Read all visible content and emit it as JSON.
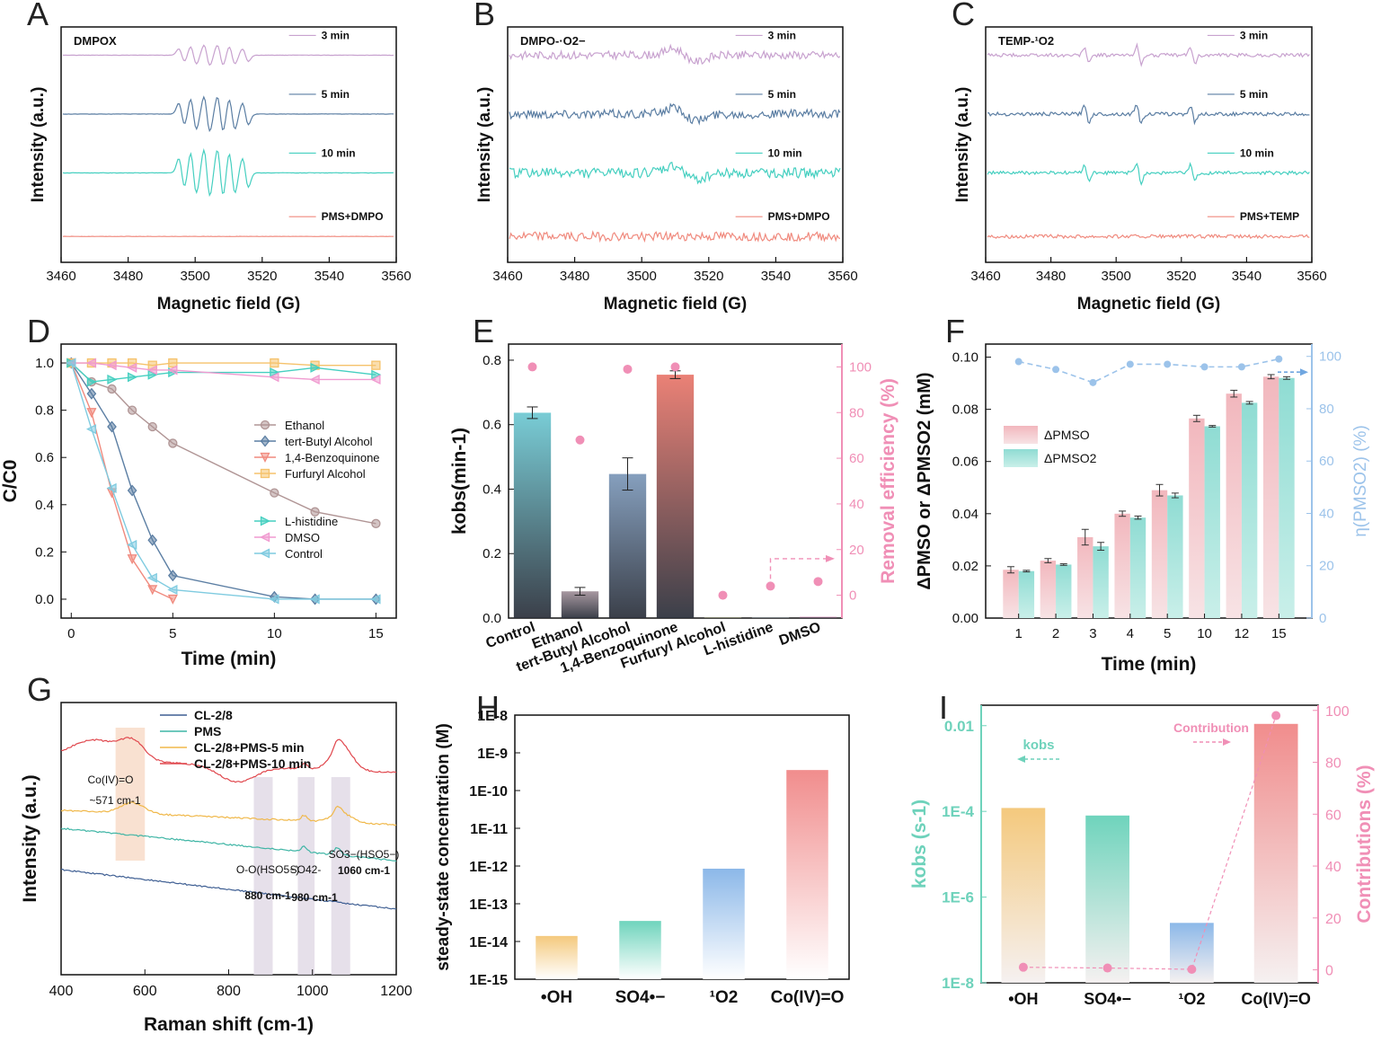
{
  "figure": {
    "panels": {
      "A": {
        "letter": "A",
        "title": "DMPOX"
      },
      "B": {
        "letter": "B",
        "title": "DMPO-·O2−"
      },
      "C": {
        "letter": "C",
        "title": "TEMP-¹O2"
      },
      "D": {
        "letter": "D"
      },
      "E": {
        "letter": "E"
      },
      "F": {
        "letter": "F"
      },
      "G": {
        "letter": "G"
      },
      "H": {
        "letter": "H"
      },
      "I": {
        "letter": "I"
      }
    },
    "colors": {
      "purple": "#c8a2cf",
      "blue": "#5b7ea3",
      "teal": "#45cfc0",
      "salmon": "#f08a7e",
      "pink": "#f08fb6",
      "light_blue": "#9cc3ea",
      "brown": "#b09595"
    }
  },
  "chart_data": [
    {
      "panel": "A",
      "type": "line",
      "title": "DMPOX",
      "xlabel": "Magnetic field (G)",
      "ylabel": "Intensity (a.u.)",
      "xlim": [
        3460,
        3560
      ],
      "xticks": [
        "3460",
        "3480",
        "3500",
        "3520",
        "3540",
        "3560"
      ],
      "series": [
        {
          "name": "3 min",
          "color": "#c8a2cf"
        },
        {
          "name": "5 min",
          "color": "#5b7ea3"
        },
        {
          "name": "10 min",
          "color": "#45cfc0"
        },
        {
          "name": "PMS+DMPO",
          "color": "#f08a7e"
        }
      ]
    },
    {
      "panel": "B",
      "type": "line",
      "title": "DMPO-·O2−",
      "xlabel": "Magnetic field (G)",
      "ylabel": "Intensity (a.u.)",
      "xlim": [
        3460,
        3560
      ],
      "xticks": [
        "3460",
        "3480",
        "3500",
        "3520",
        "3540",
        "3560"
      ],
      "series": [
        {
          "name": "3 min",
          "color": "#c8a2cf"
        },
        {
          "name": "5 min",
          "color": "#5b7ea3"
        },
        {
          "name": "10 min",
          "color": "#45cfc0"
        },
        {
          "name": "PMS+DMPO",
          "color": "#f08a7e"
        }
      ]
    },
    {
      "panel": "C",
      "type": "line",
      "title": "TEMP-¹O2",
      "xlabel": "Magnetic field (G)",
      "ylabel": "Intensity (a.u.)",
      "xlim": [
        3460,
        3560
      ],
      "xticks": [
        "3460",
        "3480",
        "3500",
        "3520",
        "3540",
        "3560"
      ],
      "series": [
        {
          "name": "3 min",
          "color": "#c8a2cf"
        },
        {
          "name": "5 min",
          "color": "#5b7ea3"
        },
        {
          "name": "10 min",
          "color": "#45cfc0"
        },
        {
          "name": "PMS+TEMP",
          "color": "#f08a7e"
        }
      ]
    },
    {
      "panel": "D",
      "type": "line",
      "xlabel": "Time (min)",
      "ylabel": "C/C0",
      "xlim": [
        -0.5,
        16
      ],
      "ylim": [
        -0.08,
        1.08
      ],
      "xticks": [
        0,
        5,
        10,
        15
      ],
      "yticks": [
        "0.0",
        "0.2",
        "0.4",
        "0.6",
        "0.8",
        "1.0"
      ],
      "series": [
        {
          "name": "Ethanol",
          "color": "#b09595",
          "marker": "circle",
          "x": [
            0,
            1,
            2,
            3,
            4,
            5,
            10,
            12,
            15
          ],
          "y": [
            1.0,
            0.92,
            0.89,
            0.8,
            0.73,
            0.66,
            0.45,
            0.37,
            0.32
          ]
        },
        {
          "name": "tert-Butyl Alcohol",
          "color": "#5b7ea3",
          "marker": "diamond",
          "x": [
            0,
            1,
            2,
            3,
            4,
            5,
            10,
            12,
            15
          ],
          "y": [
            1.0,
            0.87,
            0.73,
            0.46,
            0.25,
            0.1,
            0.01,
            0.0,
            0.0
          ]
        },
        {
          "name": "1,4-Benzoquinone",
          "color": "#f08a7e",
          "marker": "tri-down",
          "x": [
            0,
            1,
            2,
            3,
            4,
            5
          ],
          "y": [
            1.0,
            0.79,
            0.45,
            0.17,
            0.04,
            0.0
          ]
        },
        {
          "name": "Furfuryl Alcohol",
          "color": "#f5c26b",
          "marker": "square",
          "x": [
            0,
            1,
            2,
            3,
            4,
            5,
            10,
            12,
            15
          ],
          "y": [
            1.0,
            1.0,
            1.0,
            1.0,
            0.99,
            1.0,
            1.0,
            0.99,
            0.99
          ]
        },
        {
          "name": "L-histidine",
          "color": "#45cfc0",
          "marker": "tri-right",
          "x": [
            0,
            1,
            2,
            3,
            4,
            5,
            10,
            12,
            15
          ],
          "y": [
            1.0,
            0.92,
            0.93,
            0.94,
            0.95,
            0.96,
            0.96,
            0.98,
            0.95
          ]
        },
        {
          "name": "DMSO",
          "color": "#f09ad0",
          "marker": "tri-left",
          "x": [
            0,
            1,
            2,
            3,
            4,
            5,
            10,
            12,
            15
          ],
          "y": [
            1.0,
            1.0,
            0.99,
            0.98,
            0.97,
            0.97,
            0.94,
            0.93,
            0.93
          ]
        },
        {
          "name": "Control",
          "color": "#7fcbe0",
          "marker": "tri-left",
          "x": [
            0,
            1,
            2,
            3,
            4,
            5,
            10,
            12,
            15
          ],
          "y": [
            1.0,
            0.72,
            0.47,
            0.23,
            0.09,
            0.04,
            0.0,
            0.0,
            0.0
          ]
        }
      ]
    },
    {
      "panel": "E",
      "type": "bar",
      "ylabel": "kobs(min-1)",
      "ylabel_right": "Removal efficiency (%)",
      "ylim": [
        0,
        0.85
      ],
      "ylim_right": [
        -10,
        110
      ],
      "yticks": [
        "0.0",
        "0.2",
        "0.4",
        "0.6",
        "0.8"
      ],
      "yticks_right": [
        "0",
        "20",
        "40",
        "60",
        "80",
        "100"
      ],
      "categories": [
        "Control",
        "Ethanol",
        "tert-Butyl Alcohol",
        "1,4-Benzoquinone",
        "Furfuryl Alcohol",
        "L-histidine",
        "DMSO"
      ],
      "values": [
        0.637,
        0.083,
        0.447,
        0.755,
        0.002,
        0.001,
        0.004
      ],
      "errors": [
        0.018,
        0.012,
        0.05,
        0.012,
        0,
        0,
        0
      ],
      "removal_efficiency": [
        100,
        68,
        99,
        100,
        0,
        4,
        6
      ],
      "bar_colors": [
        "#6dc8d2",
        "#a08f98",
        "#7b97b8",
        "#e9766a",
        "#c9c98a",
        "#c5d9ea",
        "#f0a0c8"
      ]
    },
    {
      "panel": "F",
      "type": "bar",
      "xlabel": "Time (min)",
      "ylabel": "ΔPMSO or ΔPMSO2 (mM)",
      "ylabel_right": "η(PMSO2) (%)",
      "ylim": [
        0,
        0.105
      ],
      "ylim_right": [
        0,
        100
      ],
      "yticks": [
        "0.00",
        "0.02",
        "0.04",
        "0.06",
        "0.08",
        "0.10"
      ],
      "yticks_right": [
        "0",
        "20",
        "40",
        "60",
        "80",
        "100"
      ],
      "categories": [
        "1",
        "2",
        "3",
        "4",
        "5",
        "10",
        "12",
        "15"
      ],
      "series": [
        {
          "name": "ΔPMSO",
          "color": "#f2b7bd",
          "values": [
            0.0185,
            0.022,
            0.031,
            0.04,
            0.049,
            0.0765,
            0.086,
            0.0925
          ],
          "errors": [
            0.0012,
            0.0008,
            0.003,
            0.001,
            0.0022,
            0.0012,
            0.0013,
            0.0008
          ]
        },
        {
          "name": "ΔPMSO2",
          "color": "#a7e3dc",
          "values": [
            0.018,
            0.0205,
            0.0275,
            0.0385,
            0.047,
            0.0735,
            0.0825,
            0.092
          ],
          "errors": [
            0.0003,
            0.0003,
            0.0015,
            0.0006,
            0.0009,
            0.0003,
            0.0005,
            0.0005
          ]
        }
      ],
      "efficiency": {
        "name": "η(PMSO2)",
        "values": [
          98,
          95,
          90,
          97,
          97,
          96,
          96,
          99
        ]
      }
    },
    {
      "panel": "G",
      "type": "line",
      "xlabel": "Raman shift (cm-1)",
      "ylabel": "Intensity (a.u.)",
      "xlim": [
        400,
        1200
      ],
      "xticks": [
        "400",
        "600",
        "800",
        "1000",
        "1200"
      ],
      "series": [
        {
          "name": "CL-2/8",
          "color": "#3f5f93"
        },
        {
          "name": "PMS",
          "color": "#3fb5a5"
        },
        {
          "name": "CL-2/8+PMS-5 min",
          "color": "#f0b84a"
        },
        {
          "name": "CL-2/8+PMS-10 min",
          "color": "#e0484e"
        }
      ],
      "annotations": [
        {
          "text1": "Co(IV)=O",
          "text2": "~571 cm-1"
        },
        {
          "text1": "O-O(HSO5−)",
          "text2": "880 cm-1"
        },
        {
          "text1": "SO42-",
          "text2": "980 cm-1"
        },
        {
          "text1": "SO3−(HSO5−)",
          "text2": "1060 cm-1"
        }
      ]
    },
    {
      "panel": "H",
      "type": "bar",
      "ylabel": "steady-state concentration (M)",
      "scale": "log",
      "ylim": [
        1e-15,
        1e-08
      ],
      "yticks": [
        "1E-15",
        "1E-14",
        "1E-13",
        "1E-12",
        "1E-11",
        "1E-10",
        "1E-9",
        "1E-8"
      ],
      "categories": [
        "•OH",
        "SO4•−",
        "¹O2",
        "Co(IV)=O"
      ],
      "values": [
        1.4e-14,
        3.5e-14,
        8.5e-13,
        3.5e-10
      ],
      "bar_colors": [
        "#f3c36f",
        "#5fcfb5",
        "#7fb0e6",
        "#ef8080"
      ]
    },
    {
      "panel": "I",
      "type": "bar",
      "ylabel": "kobs (s-1)",
      "ylabel_right": "Contributions (%)",
      "scale": "log",
      "ylim": [
        1e-08,
        0.03
      ],
      "ylim_right": [
        -5,
        102
      ],
      "yticks": [
        "1E-8",
        "1E-6",
        "1E-4",
        "0.01"
      ],
      "yticks_right": [
        "0",
        "20",
        "40",
        "60",
        "80",
        "100"
      ],
      "categories": [
        "•OH",
        "SO4•−",
        "¹O2",
        "Co(IV)=O"
      ],
      "values": [
        0.00012,
        8e-05,
        2.5e-07,
        0.011
      ],
      "contribution": [
        1,
        0.7,
        0.2,
        98
      ],
      "bar_colors": [
        "#f3c36f",
        "#5fcfb5",
        "#7fb0e6",
        "#ef8080"
      ],
      "legend": [
        {
          "text": "kobs"
        },
        {
          "text": "Contribution"
        }
      ]
    }
  ]
}
